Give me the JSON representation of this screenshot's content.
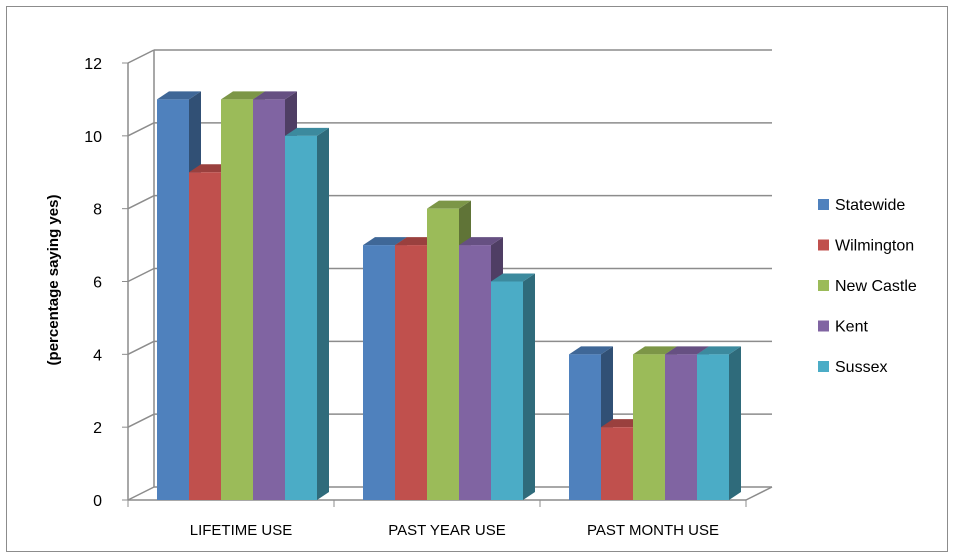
{
  "chart_data": {
    "type": "bar",
    "title": "",
    "xlabel": "",
    "ylabel": "(percentage saying yes)",
    "ylim": [
      0,
      12
    ],
    "yticks": [
      0,
      2,
      4,
      6,
      8,
      10,
      12
    ],
    "categories": [
      "LIFETIME USE",
      "PAST YEAR USE",
      "PAST MONTH USE"
    ],
    "series": [
      {
        "name": "Statewide",
        "color": "#4f81bd",
        "values": [
          11,
          7,
          4
        ]
      },
      {
        "name": "Wilmington",
        "color": "#c0504d",
        "values": [
          9,
          7,
          2
        ]
      },
      {
        "name": "New Castle",
        "color": "#9bbb59",
        "values": [
          11,
          8,
          4
        ]
      },
      {
        "name": "Kent",
        "color": "#8064a2",
        "values": [
          11,
          7,
          4
        ]
      },
      {
        "name": "Sussex",
        "color": "#4bacc6",
        "values": [
          10,
          6,
          4
        ]
      }
    ],
    "grid": true,
    "style": "3d-clustered-column",
    "legend_position": "right"
  }
}
